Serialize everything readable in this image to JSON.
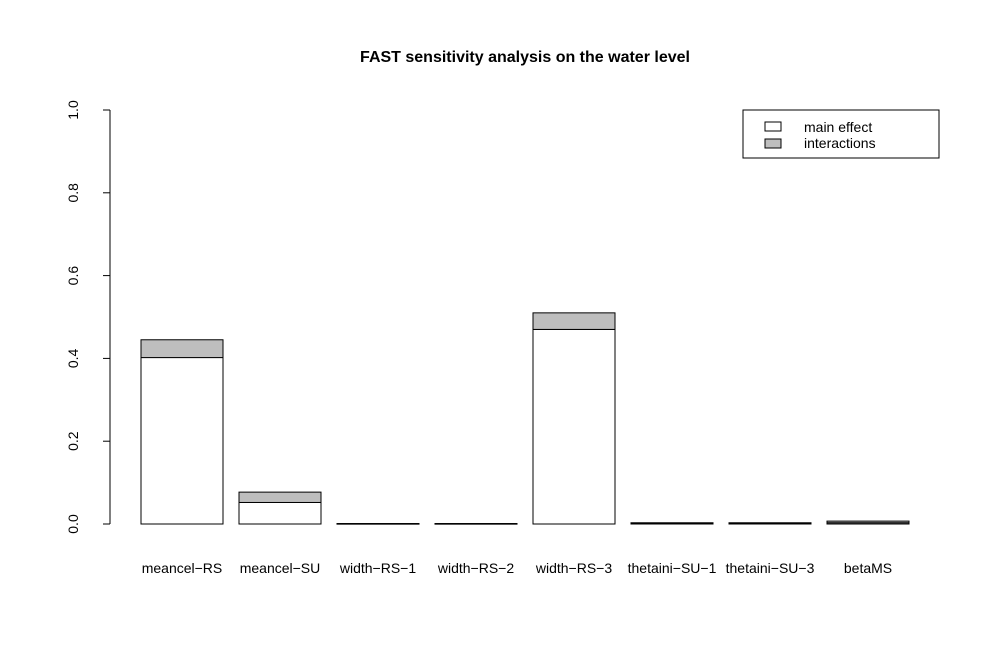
{
  "chart_data": {
    "type": "bar",
    "stacked": true,
    "title": "FAST sensitivity analysis on the water level",
    "xlabel": "",
    "ylabel": "",
    "ylim": [
      0,
      1
    ],
    "yticks": [
      "0.0",
      "0.2",
      "0.4",
      "0.6",
      "0.8",
      "1.0"
    ],
    "yticks_values": [
      0,
      0.2,
      0.4,
      0.6,
      0.8,
      1.0
    ],
    "categories": [
      "meancel−RS",
      "meancel−SU",
      "width−RS−1",
      "width−RS−2",
      "width−RS−3",
      "thetaini−SU−1",
      "thetaini−SU−3",
      "betaMS"
    ],
    "series": [
      {
        "name": "main effect",
        "color": "#ffffff",
        "values": [
          0.402,
          0.052,
          0.001,
          0.001,
          0.47,
          0.002,
          0.002,
          0.003
        ]
      },
      {
        "name": "interactions",
        "color": "#bebebe",
        "values": [
          0.043,
          0.025,
          0.0,
          0.0,
          0.04,
          0.001,
          0.001,
          0.004
        ]
      }
    ],
    "legend": {
      "position": "top-right",
      "entries": [
        "main effect",
        "interactions"
      ]
    }
  }
}
